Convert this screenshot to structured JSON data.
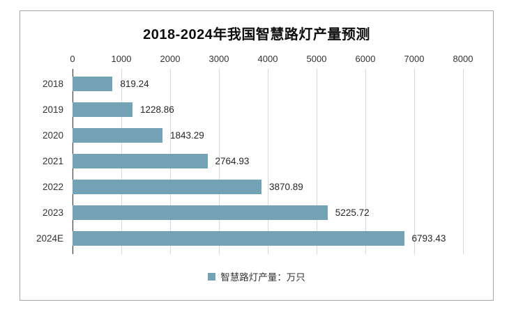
{
  "title": "2018-2024年我国智慧路灯产量预测",
  "legend": {
    "label": "智慧路灯产量：万只"
  },
  "colors": {
    "bar": "#74a2b5",
    "grid": "#d9d9d9",
    "axis": "#2b2b2b",
    "frame": "#a6a6a6",
    "text": "#262626"
  },
  "chart_data": {
    "type": "bar",
    "orientation": "horizontal",
    "title": "2018-2024年我国智慧路灯产量预测",
    "categories": [
      "2018",
      "2019",
      "2020",
      "2021",
      "2022",
      "2023",
      "2024E"
    ],
    "values": [
      819.24,
      1228.86,
      1843.29,
      2764.93,
      3870.89,
      5225.72,
      6793.43
    ],
    "value_labels": [
      "819.24",
      "1228.86",
      "1843.29",
      "2764.93",
      "3870.89",
      "5225.72",
      "6793.43"
    ],
    "xlabel": "",
    "ylabel": "",
    "xlim": [
      0,
      8000
    ],
    "xticks": [
      0,
      1000,
      2000,
      3000,
      4000,
      5000,
      6000,
      7000,
      8000
    ],
    "grid": true,
    "legend": [
      "智慧路灯产量：万只"
    ],
    "legend_position": "bottom"
  }
}
